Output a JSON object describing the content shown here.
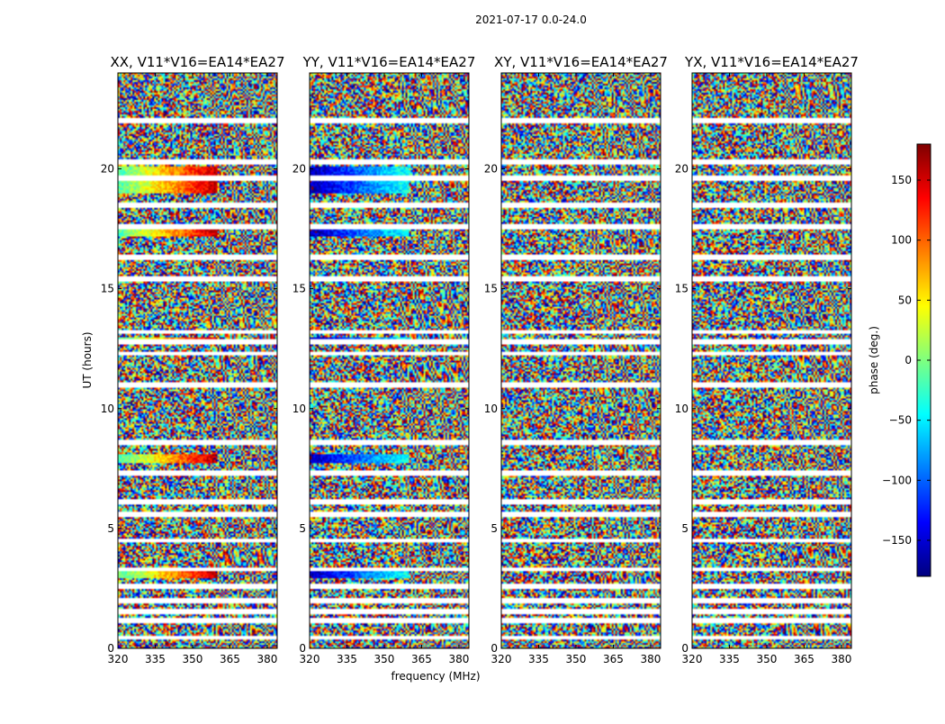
{
  "figure": {
    "suptitle": "2021-07-17 0.0-24.0"
  },
  "chart_data": {
    "type": "heatmap",
    "suptitle": "2021-07-17 0.0-24.0",
    "xlabel": "frequency (MHz)",
    "ylabel": "UT (hours)",
    "xlim": [
      320,
      384
    ],
    "ylim": [
      0,
      24
    ],
    "xticks": [
      320,
      335,
      350,
      365,
      380
    ],
    "yticks": [
      0,
      5,
      10,
      15,
      20
    ],
    "colorbar": {
      "label": "phase (deg.)",
      "range": [
        -180,
        180
      ],
      "ticks": [
        150,
        100,
        50,
        0,
        -50,
        -100,
        -150
      ],
      "colormap": "jet",
      "colors": [
        "#00007f",
        "#0000ff",
        "#007fff",
        "#00ffff",
        "#7fff7f",
        "#ffff00",
        "#ff7f00",
        "#ff0000",
        "#7f0000"
      ]
    },
    "panels": [
      {
        "title": "XX, V11*V16=EA14*EA27"
      },
      {
        "title": "YY, V11*V16=EA14*EA27"
      },
      {
        "title": "XY, V11*V16=EA14*EA27"
      },
      {
        "title": "YX, V11*V16=EA14*EA27"
      }
    ]
  }
}
